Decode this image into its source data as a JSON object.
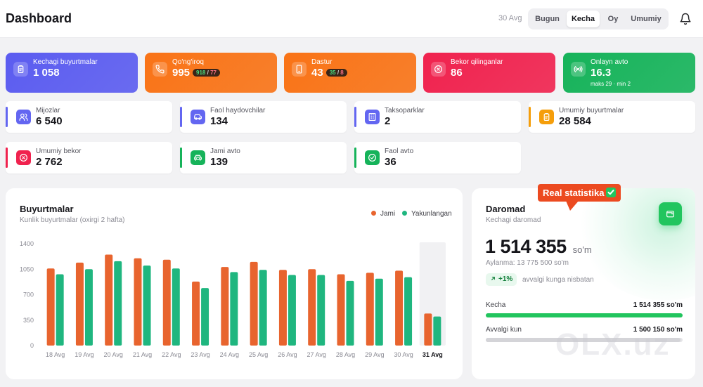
{
  "header": {
    "title": "Dashboard",
    "date_label": "30 Avg",
    "periods": [
      {
        "label": "Bugun",
        "active": false
      },
      {
        "label": "Kecha",
        "active": true
      },
      {
        "label": "Oy",
        "active": false
      },
      {
        "label": "Umumiy",
        "active": false
      }
    ]
  },
  "hero_cards": [
    {
      "label": "Kechagi buyurtmalar",
      "value": "1 058",
      "color": "#5b5cf0",
      "icon": "clipboard-icon"
    },
    {
      "label": "Qo'ng'iroq",
      "value": "995",
      "pill_a": "918",
      "pill_sep": "/",
      "pill_b": "77",
      "color": "#f97316",
      "icon": "phone-icon"
    },
    {
      "label": "Dastur",
      "value": "43",
      "pill_a": "35",
      "pill_sep": "/",
      "pill_b": "8",
      "color": "#f97316",
      "icon": "smartphone-icon"
    },
    {
      "label": "Bekor qilinganlar",
      "value": "86",
      "color": "#f0224e",
      "icon": "cancel-circle-icon"
    },
    {
      "label": "Onlayn avto",
      "value": "16.3",
      "sub": "maks 29 · min 2",
      "color": "#16b35a",
      "icon": "radio-signal-icon"
    }
  ],
  "stats": [
    {
      "label": "Mijozlar",
      "value": "6 540",
      "accent": "#6366f1",
      "icon": "users-icon"
    },
    {
      "label": "Faol haydovchilar",
      "value": "134",
      "accent": "#6366f1",
      "icon": "car-icon"
    },
    {
      "label": "Taksoparklar",
      "value": "2",
      "accent": "#6366f1",
      "icon": "building-icon"
    },
    {
      "label": "Umumiy buyurtmalar",
      "value": "28 584",
      "accent": "#f59e0b",
      "icon": "clipboard-icon"
    },
    {
      "label": "Umumiy bekor",
      "value": "2 762",
      "accent": "#f0224e",
      "icon": "cancel-circle-icon"
    },
    {
      "label": "Jami avto",
      "value": "139",
      "accent": "#16b35a",
      "icon": "car-front-icon"
    },
    {
      "label": "Faol avto",
      "value": "36",
      "accent": "#16b35a",
      "icon": "check-circle-icon"
    }
  ],
  "orders_chart": {
    "title": "Buyurtmalar",
    "subtitle": "Kunlik buyurtmalar (oxirgi 2 hafta)",
    "legend": [
      {
        "label": "Jami",
        "color": "#e8642e"
      },
      {
        "label": "Yakunlangan",
        "color": "#1fb67f"
      }
    ]
  },
  "chart_data": {
    "type": "bar",
    "categories": [
      "18 Avg",
      "19 Avg",
      "20 Avg",
      "21 Avg",
      "22 Avg",
      "23 Avg",
      "24 Avg",
      "25 Avg",
      "26 Avg",
      "27 Avg",
      "28 Avg",
      "29 Avg",
      "30 Avg",
      "31 Avg"
    ],
    "series": [
      {
        "name": "Jami",
        "values": [
          1060,
          1140,
          1250,
          1200,
          1180,
          880,
          1080,
          1150,
          1040,
          1050,
          980,
          1000,
          1030,
          440
        ]
      },
      {
        "name": "Yakunlangan",
        "values": [
          980,
          1050,
          1160,
          1100,
          1060,
          790,
          1010,
          1040,
          970,
          970,
          890,
          920,
          940,
          400
        ]
      }
    ],
    "yticks": [
      "0",
      "350",
      "700",
      "1050",
      "1400"
    ],
    "ylim": [
      0,
      1400
    ],
    "highlight_category": "31 Avg",
    "grid": false
  },
  "revenue": {
    "title": "Daromad",
    "subtitle": "Kechagi daromad",
    "amount": "1 514 355",
    "unit": "so'm",
    "turnover": "Aylanma: 13 775 500 so'm",
    "change": "+1%",
    "change_text": "avvalgi kunga nisbatan",
    "rows": [
      {
        "label": "Kecha",
        "value": "1 514 355 so'm",
        "fill": 1.0,
        "color": "#22c55e"
      },
      {
        "label": "Avvalgi kun",
        "value": "1 500 150 so'm",
        "fill": 0.99,
        "color": "#d4d4d8"
      }
    ]
  },
  "callout": {
    "text": "Real statistika"
  },
  "watermark": "OLX.uz"
}
